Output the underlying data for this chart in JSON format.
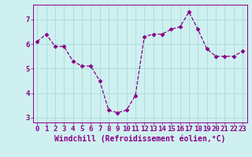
{
  "x": [
    0,
    1,
    2,
    3,
    4,
    5,
    6,
    7,
    8,
    9,
    10,
    11,
    12,
    13,
    14,
    15,
    16,
    17,
    18,
    19,
    20,
    21,
    22,
    23
  ],
  "y": [
    6.1,
    6.4,
    5.9,
    5.9,
    5.3,
    5.1,
    5.1,
    4.5,
    3.3,
    3.2,
    3.3,
    3.9,
    6.3,
    6.4,
    6.4,
    6.6,
    6.7,
    7.3,
    6.6,
    5.8,
    5.5,
    5.5,
    5.5,
    5.7
  ],
  "line_color": "#880088",
  "marker": "D",
  "marker_size": 2.5,
  "bg_color": "#cff0f0",
  "grid_color": "#aadede",
  "xlabel": "Windchill (Refroidissement éolien,°C)",
  "xlabel_fontsize": 7,
  "tick_fontsize": 6.5,
  "xlim": [
    -0.5,
    23.5
  ],
  "ylim": [
    2.8,
    7.6
  ],
  "yticks": [
    3,
    4,
    5,
    6,
    7
  ],
  "xticks": [
    0,
    1,
    2,
    3,
    4,
    5,
    6,
    7,
    8,
    9,
    10,
    11,
    12,
    13,
    14,
    15,
    16,
    17,
    18,
    19,
    20,
    21,
    22,
    23
  ]
}
